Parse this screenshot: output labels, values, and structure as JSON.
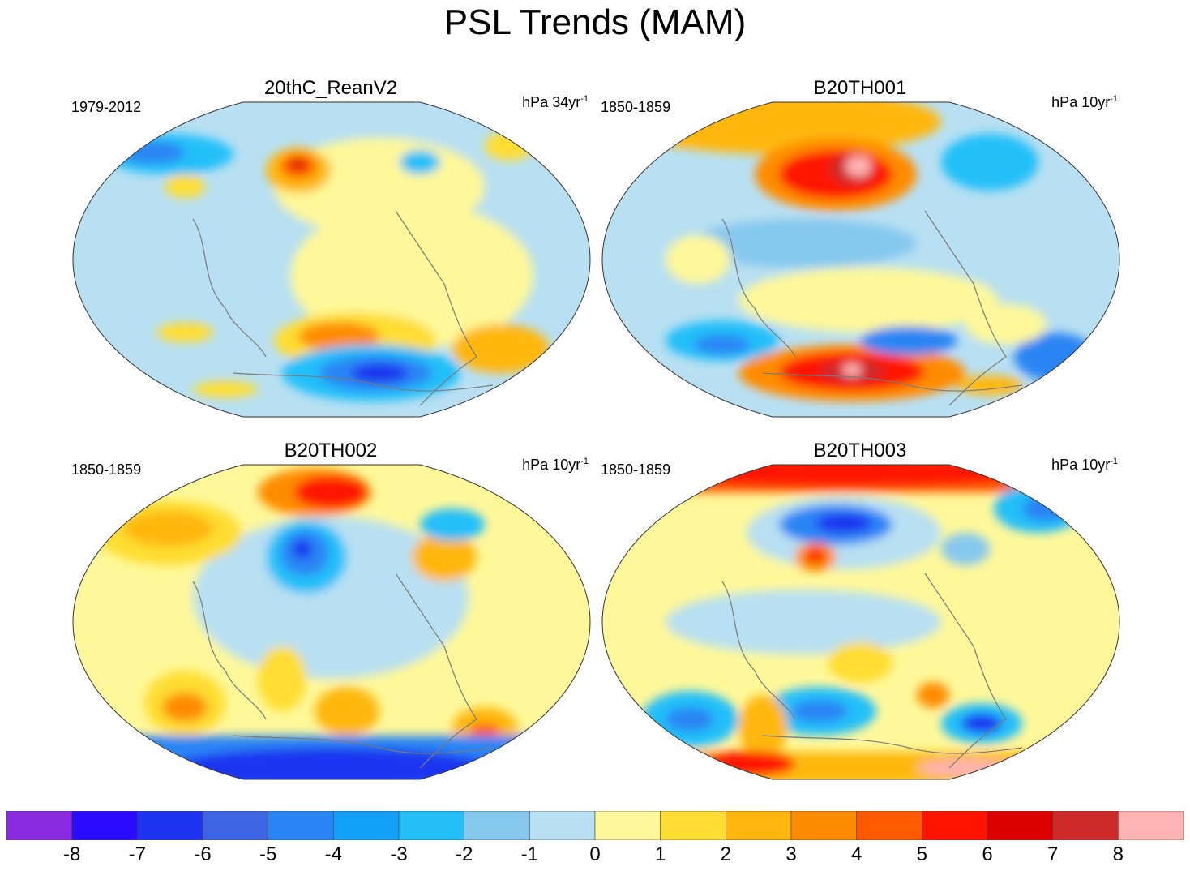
{
  "title": "PSL Trends (MAM)",
  "panels": [
    {
      "title": "20thC_ReanV2",
      "period": "1979-2012",
      "units_base": "hPa 34yr",
      "units_exp": "-1"
    },
    {
      "title": "B20TH001",
      "period": "1850-1859",
      "units_base": "hPa 10yr",
      "units_exp": "-1"
    },
    {
      "title": "B20TH002",
      "period": "1850-1859",
      "units_base": "hPa 10yr",
      "units_exp": "-1"
    },
    {
      "title": "B20TH003",
      "period": "1850-1859",
      "units_base": "hPa 10yr",
      "units_exp": "-1"
    }
  ],
  "colorbar": {
    "labels": [
      "-8",
      "-7",
      "-6",
      "-5",
      "-4",
      "-3",
      "-2",
      "-1",
      "0",
      "1",
      "2",
      "3",
      "4",
      "5",
      "6",
      "7",
      "8"
    ],
    "colors": [
      "#8a2be2",
      "#2a0bff",
      "#1d35f0",
      "#3c64e3",
      "#2a85f4",
      "#12a0f8",
      "#22bff9",
      "#86c8ee",
      "#b8e0f2",
      "#fff89a",
      "#ffdd33",
      "#ffb70f",
      "#ff8c00",
      "#ff5a00",
      "#ff1400",
      "#dc0000",
      "#cf2a2a",
      "#ffb4b4"
    ]
  },
  "colors": {
    "coast": "#7a7a7a",
    "border": "#333333"
  }
}
